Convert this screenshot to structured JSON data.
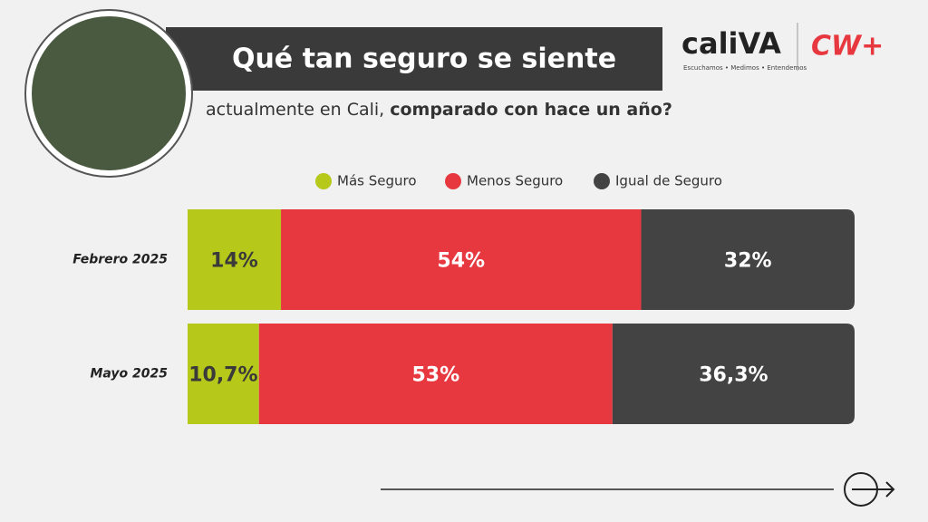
{
  "branding": {
    "logo": "caliVA",
    "tagline": "Escuchamos • Medimos • Entendemos",
    "partner": "CW+"
  },
  "chart_data": {
    "type": "stacked-bar-horizontal",
    "title": "Qué tan seguro se siente",
    "subtitle": [
      "actualmente en Cali,",
      "comparado con hace un año?"
    ],
    "categories": [
      "Febrero 2025",
      "Mayo 2025"
    ],
    "xlim": [
      0,
      100
    ],
    "series": [
      {
        "name": "Más Seguro",
        "color": "#b6c81a",
        "label_color": "#3a3a3a",
        "values": [
          14,
          10.7
        ],
        "value_labels": [
          "14%",
          "10,7%"
        ]
      },
      {
        "name": "Menos Seguro",
        "color": "#e8383f",
        "label_color": "#ffffff",
        "values": [
          54,
          53
        ],
        "value_labels": [
          "54%",
          "53%"
        ]
      },
      {
        "name": "Igual de Seguro",
        "color": "#434343",
        "label_color": "#ffffff",
        "values": [
          32,
          36.3
        ],
        "value_labels": [
          "32%",
          "36,3%"
        ]
      }
    ]
  }
}
